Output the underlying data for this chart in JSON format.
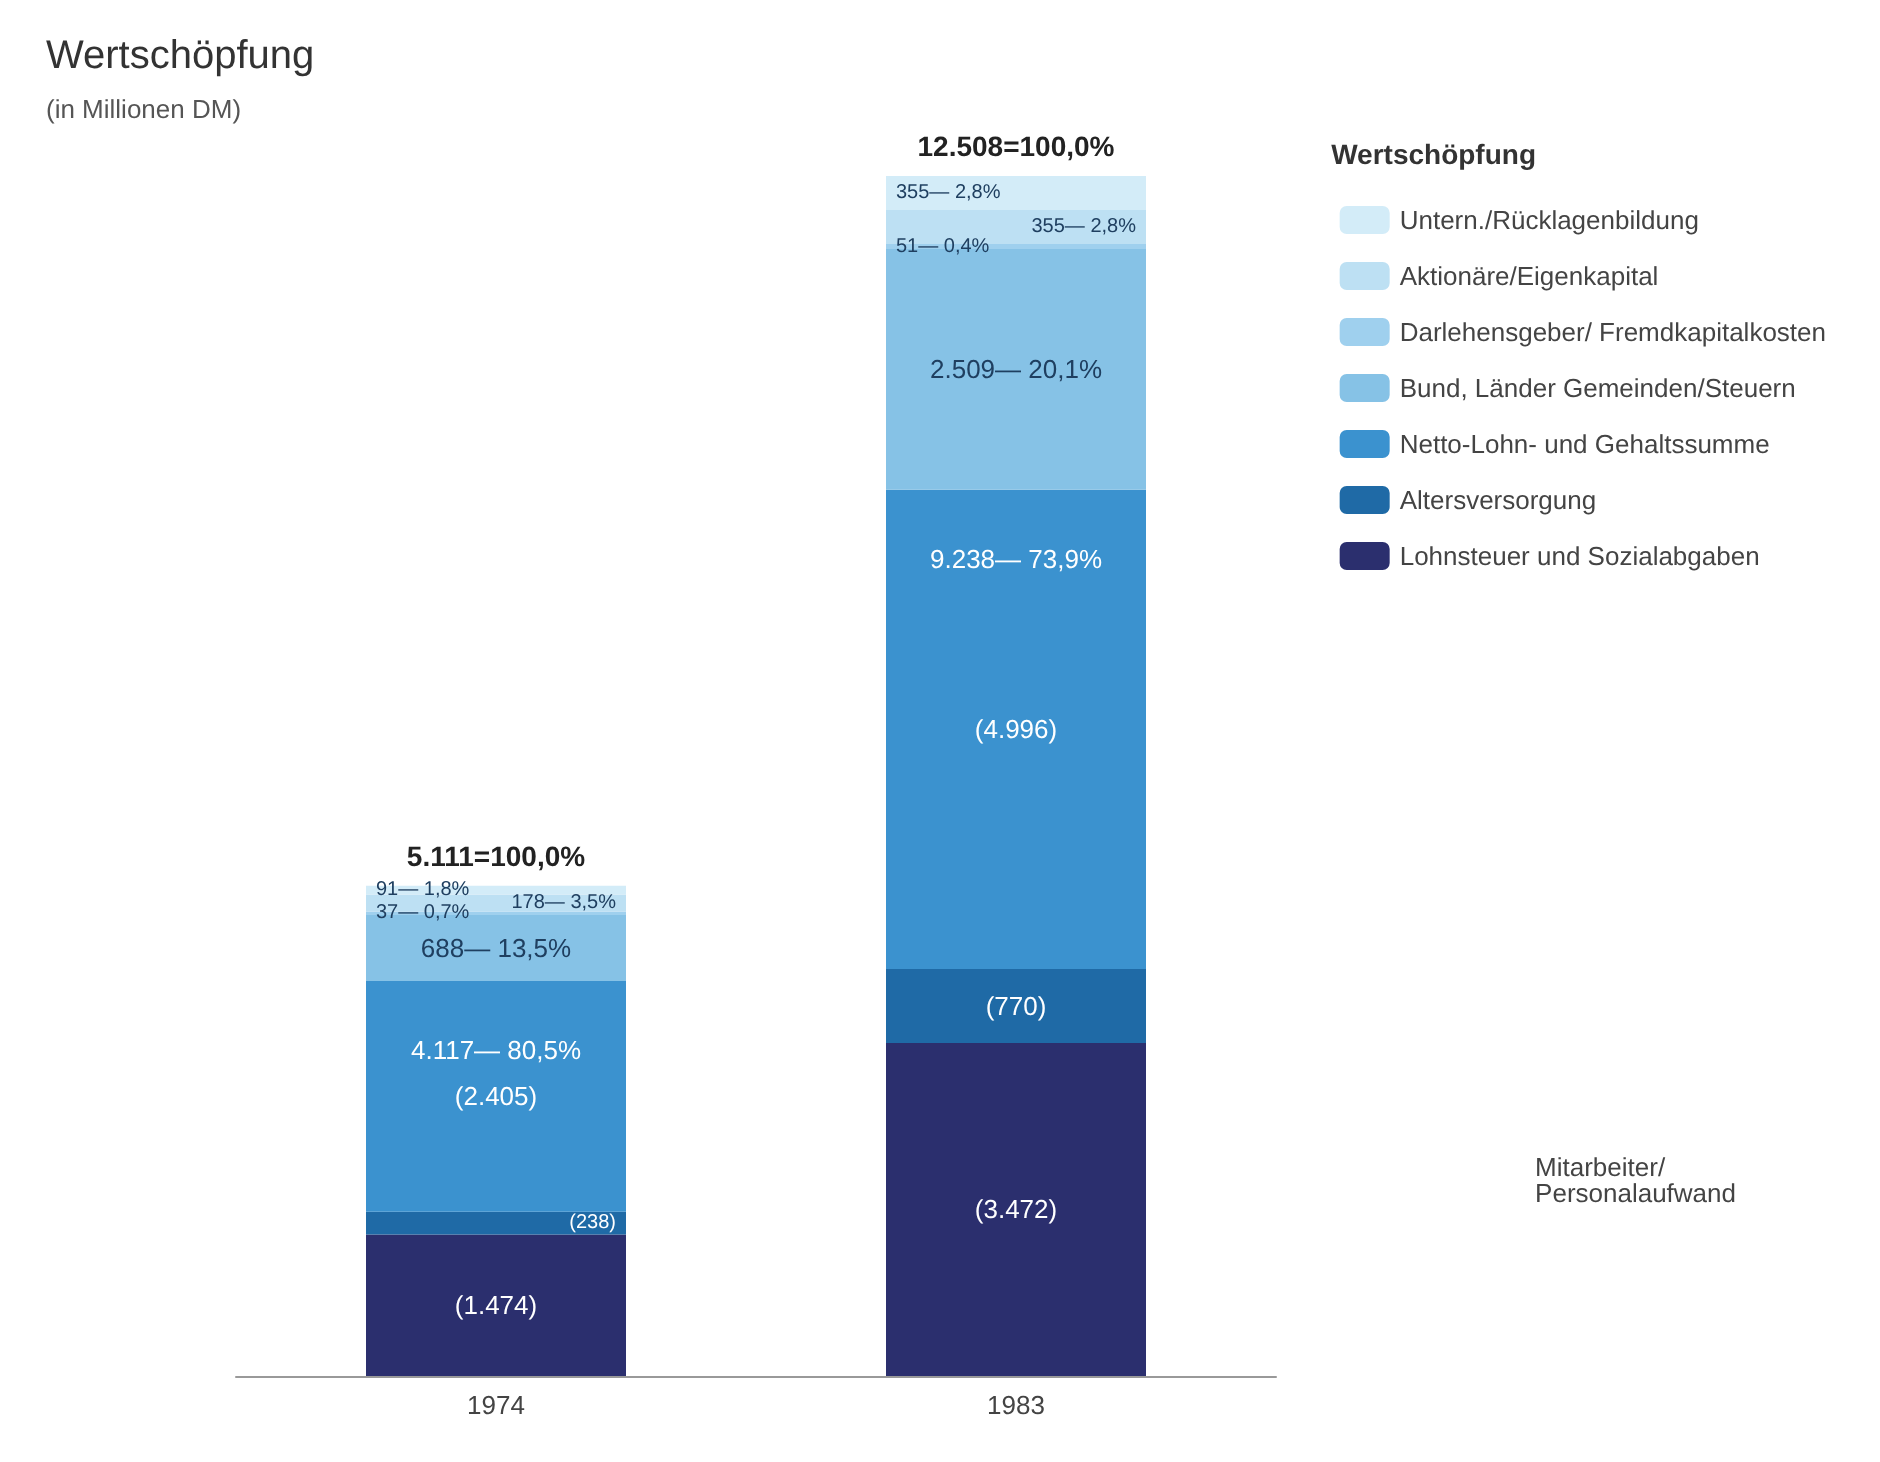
{
  "chart_data": {
    "type": "bar",
    "title": "Wertschöpfung",
    "subtitle": "(in Millionen DM)",
    "legend_title": "Wertschöpfung",
    "stacked": true,
    "categories": [
      "1974",
      "1983"
    ],
    "legend": "right",
    "totals": [
      "5.111=100,0%",
      "12.508=100,0%"
    ],
    "series": [
      {
        "name": "Lohnsteuer und Sozialabgaben",
        "color": "#2b2f6e",
        "values": [
          1474,
          3472
        ],
        "value_labels": [
          "(1.474)",
          "(3.472)"
        ]
      },
      {
        "name": "Altersversorgung",
        "color": "#1f6aa6",
        "values": [
          238,
          770
        ],
        "value_labels": [
          "(238)",
          "(770)"
        ]
      },
      {
        "name": "Netto-Lohn- und Gehaltssumme",
        "color": "#3b92cf",
        "values": [
          2405,
          4996
        ],
        "value_labels": [
          "(2.405)",
          "(4.996)"
        ]
      },
      {
        "name": "Bund, Länder Gemeinden/Steuern",
        "color": "#86c2e6",
        "values": [
          688,
          2509
        ],
        "value_labels": [
          "688— 13,5%",
          "2.509— 20,1%"
        ]
      },
      {
        "name": "Darlehensgeber/ Fremdkapitalkosten",
        "color": "#9fd0ee",
        "values": [
          37,
          51
        ],
        "value_labels": [
          "37— 0,7%",
          "51— 0,4%"
        ]
      },
      {
        "name": "Aktionäre/Eigenkapital",
        "color": "#bde0f3",
        "values": [
          178,
          355
        ],
        "value_labels": [
          "178— 3,5%",
          "355— 2,8%"
        ]
      },
      {
        "name": "Untern./Rücklagenbildung",
        "color": "#d3ecf8",
        "values": [
          91,
          355
        ],
        "value_labels": [
          "91— 1,8%",
          "355— 2,8%"
        ]
      }
    ],
    "annotations": [
      {
        "text": "4.117— 80,5%",
        "x": "1974",
        "y": 4117
      },
      {
        "text": "9.238— 73,9%",
        "x": "1983",
        "y": 9238
      },
      "Mitarbeiter/ Personalaufwand"
    ]
  }
}
